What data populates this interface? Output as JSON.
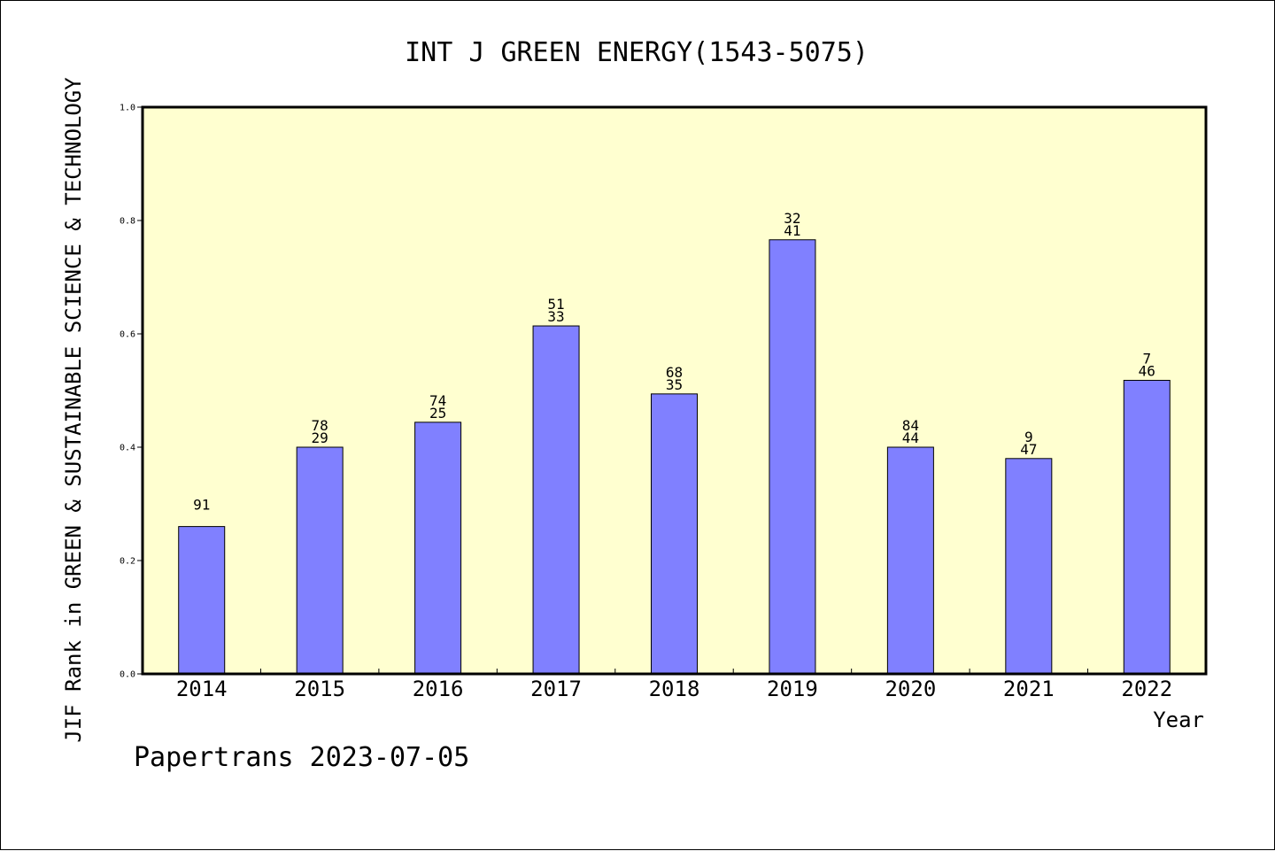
{
  "chart_data": {
    "type": "bar",
    "title": "INT J GREEN ENERGY(1543-5075)",
    "ylabel": "JIF Rank in GREEN & SUSTAINABLE SCIENCE & TECHNOLOGY",
    "xlabel": "Year",
    "footer": "Papertrans 2023-07-05",
    "categories": [
      "2014",
      "2015",
      "2016",
      "2017",
      "2018",
      "2019",
      "2020",
      "2021",
      "2022"
    ],
    "values": [
      0.26,
      0.4,
      0.444,
      0.614,
      0.494,
      0.766,
      0.4,
      0.38,
      0.518
    ],
    "labels": [
      [
        "91"
      ],
      [
        "78",
        "29"
      ],
      [
        "74",
        "25"
      ],
      [
        "51",
        "33"
      ],
      [
        "68",
        "35"
      ],
      [
        "32",
        "41"
      ],
      [
        "84",
        "44"
      ],
      [
        "9",
        "47"
      ],
      [
        "7",
        "46"
      ]
    ],
    "ylim": [
      0,
      1.0
    ],
    "yticks": [
      "0.0",
      "0.2",
      "0.4",
      "0.6",
      "0.8",
      "1.0"
    ],
    "grid": false,
    "colors": {
      "plot_background": "#ffffd0",
      "bar_fill": "#8080ff",
      "bar_stroke": "#000000"
    }
  }
}
